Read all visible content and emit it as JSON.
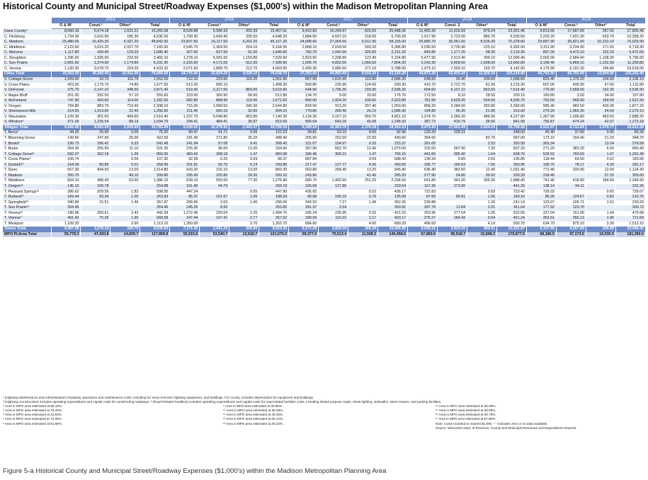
{
  "title": "Historical County and Municipal Street/Roadway Expenses ($1,000's) within the Madison Metropolitan Planning Area",
  "header": {
    "label": "County/ Municipality",
    "years": [
      "2015",
      "2016",
      "2017",
      "2018",
      "2019"
    ],
    "subcols": [
      [
        "O & M¹",
        "Const.²",
        "Other³",
        "Total"
      ],
      [
        "O & M¹",
        "Const.²",
        "Other³",
        "Total"
      ],
      [
        "O & M¹",
        "Const.²",
        "Other³",
        "Total"
      ],
      [
        "O & M¹",
        "Const. 2",
        "Other³",
        "Total"
      ],
      [
        "O & M¹",
        "Const.²",
        "Other³",
        "Total"
      ]
    ]
  },
  "rows": [
    {
      "t": "d",
      "l": "Dane County⁴",
      "v": [
        "8,060.19",
        "5,674.18",
        "1,531.21",
        "15,265.58",
        "8,528.88",
        "5,996.33",
        "932.39",
        "15,457.61",
        "9,422.83",
        "16,249.97",
        "815.55",
        "26,488.36",
        "11,455.30",
        "11,016.93",
        "879.24",
        "23,351.46",
        "9,813.66",
        "17,687.89",
        "357.92",
        "27,859.48"
      ]
    },
    {
      "t": "d",
      "l": "C. Fitchburg",
      "v": [
        "1,734.30",
        "2,616.90",
        "185.30",
        "4,536.50",
        "1,799.30",
        "2,643.40",
        "205.50",
        "4,648.20",
        "1,884.60",
        "4,597.10",
        "218.50",
        "6,700.20",
        "1,917.90",
        "2,723.00",
        "889.70",
        "5,530.60",
        "2,293.20",
        "7,431.30",
        "633.70",
        "10,358.20"
      ]
    },
    {
      "t": "d",
      "l": "C. Madison",
      "v": [
        "25,480.00",
        "16,425.30",
        "6,937.20",
        "48,842.50",
        "23,837.50",
        "16,117.50",
        "6,202.20",
        "46,157.20",
        "24,588.60",
        "27,064.50",
        "6,511.90",
        "58,165.00",
        "25,880.70",
        "35,961.60",
        "8,536.30",
        "70,378.60",
        "29,897.90",
        "35,821.90",
        "10,310.10",
        "76,029.90"
      ]
    },
    {
      "t": "d",
      "l": "C. Middleton",
      "v": [
        "2,122.60",
        "3,015.20",
        "2,027.70",
        "7,165.50",
        "2,545.70",
        "2,364.50",
        "254.10",
        "5,164.30",
        "2,868.10",
        "2,018.50",
        "500.20",
        "5,386.80",
        "3,036.50",
        "3,730.40",
        "225.10",
        "6,992.00",
        "3,311.90",
        "3,234.90",
        "171.50",
        "6,718.30"
      ]
    },
    {
      "t": "d",
      "l": "C. Monona",
      "v": [
        "1,117.80",
        "439.40",
        "129.20",
        "1,686.40",
        "927.60",
        "627.50",
        "91.50",
        "1,646.60",
        "782.70",
        "1,042.90",
        "325.60",
        "2,151.20",
        "843.80",
        "1,177.20",
        "98.30",
        "2,119.30",
        "897.30",
        "4,473.10",
        "102.20",
        "5,472.60"
      ]
    },
    {
      "t": "d",
      "l": "C. Stoughton",
      "v": [
        "1,296.60",
        "1,935.00",
        "233.50",
        "3,465.10",
        "1,278.10",
        "5,091.60",
        "1,159.80",
        "7,529.50",
        "2,823.60",
        "2,208.80",
        "122.40",
        "5,154.80",
        "9,477.90",
        "2,513.40",
        "399.10",
        "12,390.40",
        "2,003.90",
        "2,684.40",
        "1,108.30",
        "5,796.60"
      ]
    },
    {
      "t": "d",
      "l": "C. Sun Prairie",
      "v": [
        "2,681.60",
        "2,374.90",
        "1,174.80",
        "6,231.30",
        "2,316.60",
        "4,171.00",
        "912.30",
        "7,399.90",
        "1,905.70",
        "4,832.00",
        "1,066.50",
        "7,804.20",
        "2,243.30",
        "9,809.50",
        "1,608.00",
        "13,660.80",
        "3,158.40",
        "6,868.10",
        "1,232.30",
        "11,258.80"
      ]
    },
    {
      "t": "d",
      "l": "C. Verona",
      "v": [
        "1,130.30",
        "3,578.70",
        "224.20",
        "4,933.20",
        "2,071.60",
        "1,808.70",
        "212.70",
        "4,093.00",
        "2,430.30",
        "3,086.60",
        "271.10",
        "5,788.00",
        "1,473.10",
        "7,500.10",
        "169.70",
        "9,142.90",
        "4,179.90",
        "6,191.30",
        "246.80",
        "10,618.00"
      ]
    },
    {
      "t": "s",
      "l": "Cities Total",
      "v": [
        "35,563.20",
        "30,385.40",
        "10,911.90",
        "76,860.50",
        "34,776.40",
        "32,824.20",
        "9,038.10",
        "76,638.70",
        "37,283.60",
        "44,850.40",
        "9,016.20",
        "91,150.20",
        "44,873.20",
        "63,415.20",
        "11,926.20",
        "120,214.60",
        "45,742.50",
        "66,705.00",
        "13,804.90",
        "126,252.40"
      ]
    },
    {
      "t": "d",
      "l": "V. Cottage Grove",
      "v": [
        "1,429.60",
        "10.70",
        "111.70",
        "1,552.00",
        "712.10",
        "223.60",
        "116.20",
        "1,051.90",
        "857.00",
        "1,615.40",
        "113.80",
        "2,586.20",
        "638.60",
        "30.40",
        "339.60",
        "1,008.60",
        "825.40",
        "1,176.20",
        "134.50",
        "2,136.10"
      ]
    },
    {
      "t": "d",
      "l": "V. Cross Plains",
      "v": [
        "423.00",
        "1,179.70",
        "74.80",
        "1,677.50",
        "513.20",
        "895.10",
        "",
        "1,408.30",
        "569.80",
        "235.90",
        "124.60",
        "930.30",
        "410.70",
        "2,722.70",
        "81.90",
        "3,215.30",
        "607.00",
        "436.90",
        "67.00",
        "1,110.90"
      ]
    },
    {
      "t": "d",
      "l": "V. DeForest",
      "v": [
        "375.70",
        "2,147.20",
        "348.50",
        "2,871.40",
        "519.30",
        "2,217.60",
        "883.00",
        "3,619.90",
        "644.00",
        "1,796.30",
        "155.90",
        "2,596.20",
        "654.60",
        "6,107.10",
        "853.50",
        "7,615.40",
        "776.60",
        "2,568.00",
        "192.30",
        "3,536.90"
      ]
    },
    {
      "t": "d",
      "l": "V. Maple Bluff",
      "v": [
        "201.00",
        "292.50",
        "57.10",
        "550.60",
        "153.00",
        "300.90",
        "58.90",
        "512.80",
        "134.70",
        "9.00",
        "33.00",
        "176.70",
        "172.50",
        "8.10",
        "28.50",
        "209.10",
        "160.80",
        "3.00",
        "34.00",
        "197.80"
      ]
    },
    {
      "t": "d",
      "l": "V. McFarland",
      "v": [
        "747.90",
        "420.60",
        "114.00",
        "1,282.50",
        "682.80",
        "868.90",
        "119.90",
        "1,671.60",
        "890.00",
        "1,924.20",
        "109.60",
        "2,923.80",
        "781.90",
        "3,629.30",
        "524.50",
        "4,935.70",
        "763.50",
        "568.90",
        "189.50",
        "1,521.90"
      ]
    },
    {
      "t": "d",
      "l": "V. Oregon",
      "v": [
        "794.80",
        "883.70",
        "719.60",
        "2,398.10",
        "715.00",
        "1,589.50",
        "340.30",
        "2,644.80",
        "833.00",
        "913.20",
        "207.40",
        "1,953.60",
        "858.20",
        "2,284.60",
        "250.80",
        "3,393.60",
        "985.40",
        "482.50",
        "409.30",
        "1,877.20"
      ]
    },
    {
      "t": "d",
      "l": "V. Shorewood Hills",
      "v": [
        "214.60",
        "1,019.60",
        "22.40",
        "1,256.60",
        "211.40",
        "650.10",
        "32.60",
        "894.10",
        "770.80",
        "289.40",
        "26.10",
        "1,086.30",
        "194.80",
        "96.30",
        "21.90",
        "313.00",
        "279.20",
        "1,966.30",
        "24.60",
        "2,270.10"
      ]
    },
    {
      "t": "d",
      "l": "V. Waunakee",
      "v": [
        "1,109.30",
        "901.50",
        "499.60",
        "2,510.40",
        "1,237.70",
        "5,048.80",
        "853.80",
        "7,140.30",
        "1,134.30",
        "3,157.10",
        "559.70",
        "4,851.10",
        "1,374.70",
        "2,366.20",
        "486.90",
        "4,227.80",
        "1,367.90",
        "1,036.80",
        "483.50",
        "2,888.20"
      ]
    },
    {
      "t": "d",
      "l": "V. Windsor⁵",
      "v": [
        "371.00",
        "1,235.54",
        "88.19",
        "1,694.79",
        "294.41",
        "484.41",
        "36.87",
        "815.69",
        "565.64",
        "643.20",
        "40.08",
        "1,248.93",
        "387.73",
        "416.79",
        "36.56",
        "841.08",
        "756.87",
        "474.24",
        "42.07",
        "1,273.18"
      ]
    },
    {
      "t": "s",
      "l": "Villages Total",
      "v": [
        "5,666.95",
        "8,091.04",
        "2,035.89",
        "15,793.89",
        "5,038.91",
        "12,278.91",
        "2,441.57",
        "19,759.39",
        "6,399.24",
        "10,583.70",
        "1,370.18",
        "18,353.13",
        "5,473.93",
        "17,661.49",
        "2,624.16",
        "25,759.58",
        "6,522.67",
        "8,712.84",
        "1,576.77",
        "16,812.28"
      ]
    },
    {
      "t": "d",
      "l": "T. Berry⁶",
      "v": [
        "44.25",
        "25.90",
        "0.05",
        "70.20",
        "80.47",
        "41.71",
        "0.05",
        "122.23",
        "39.81",
        "53.10",
        "0.05",
        "92.96",
        "120.29",
        "228.21",
        "",
        "348.50",
        "45.40",
        "37.89",
        "0.05",
        "83.34"
      ]
    },
    {
      "t": "d",
      "l": "T. Blooming Grove",
      "v": [
        "149.60",
        "247.90",
        "25.00",
        "422.50",
        "181.40",
        "271.80",
        "35.20",
        "488.40",
        "205.60",
        "202.50",
        "22.50",
        "430.60",
        "354.60",
        "",
        "83.70",
        "687.00",
        "173.10",
        "154.40",
        "21.20",
        "348.70"
      ]
    },
    {
      "t": "d",
      "l": "T. Bristol⁷",
      "v": [
        "236.73",
        "296.42",
        "9.33",
        "542.48",
        "241.94",
        "57.08",
        "9.41",
        "308.43",
        "151.07",
        "154.97",
        "9.33",
        "315.37",
        "391.05",
        "",
        "2.53",
        "393.58",
        "363.34",
        "",
        "13.24",
        "376.58"
      ]
    },
    {
      "t": "d",
      "l": "T. Burke",
      "v": [
        "264.30",
        "255.90",
        "11.10",
        "531.30",
        "225.30",
        "96.00",
        "13.30",
        "334.60",
        "397.90",
        "662.70",
        "12.40",
        "1,073.00",
        "232.00",
        "597.90",
        "7.30",
        "837.20",
        "271.20",
        "383.20",
        "6.00",
        "660.40"
      ]
    },
    {
      "t": "d",
      "l": "T. Cottage Grove⁸",
      "v": [
        "592.07",
        "262.18",
        "1.39",
        "855.65",
        "483.42",
        "398.18",
        "1.47",
        "883.08",
        "396.46",
        "368.21",
        "1.47",
        "766.15",
        "441.66",
        "395.40",
        "1.64",
        "838.70",
        "529.52",
        "760.50",
        "1.47",
        "1,291.49"
      ]
    },
    {
      "t": "d",
      "l": "T. Cross Plains⁹",
      "v": [
        "106.74",
        "",
        "0.56",
        "107.30",
        "92.58",
        "6.20",
        "0.59",
        "99.37",
        "687.84",
        "",
        "0.59",
        "688.42",
        "136.34",
        "0.89",
        "0.59",
        "135.85",
        "118.44",
        "64.50",
        "0.62",
        "183.56"
      ]
    },
    {
      "t": "d",
      "l": "T. Dunkirk¹⁰",
      "v": [
        "164.09",
        "89.89",
        "5.01",
        "258.99",
        "201.91",
        "92.75",
        "5.14",
        "299.80",
        "217.47",
        "127.77",
        "4.36",
        "349.60",
        "185.77",
        "166.63",
        "7.55",
        "359.95",
        "199.70",
        "78.17",
        "4.30",
        "282.17"
      ]
    },
    {
      "t": "d",
      "l": "T. Dunn",
      "v": [
        "657.30",
        "844.50",
        "13.00",
        "1,514.80",
        "643.20",
        "216.10",
        "13.00",
        "860.30",
        "663.80",
        "268.40",
        "13.20",
        "945.40",
        "636.40",
        "382.60",
        "12.40",
        "1,031.40",
        "772.40",
        "339.90",
        "12.00",
        "1,124.30"
      ]
    },
    {
      "t": "d",
      "l": "T. Madison",
      "v": [
        "350.70",
        "",
        "49.10",
        "399.80",
        "295.00",
        "165.80",
        "39.30",
        "500.10",
        "243.80",
        "",
        "41.40",
        "285.20",
        "277.90",
        "24.80",
        "36.50",
        "339.20",
        "318.40",
        "",
        "37.20",
        "355.60"
      ]
    },
    {
      "t": "d",
      "l": "T. Middleton",
      "v": [
        "834.10",
        "498.40",
        "53.60",
        "1,386.10",
        "639.10",
        "559.50",
        "77.30",
        "1,275.90",
        "680.70",
        "1,402.60",
        "251.20",
        "2,334.50",
        "641.80",
        "941.30",
        "305.30",
        "1,888.40",
        "741.40",
        "418.90",
        "184.60",
        "1,344.90"
      ]
    },
    {
      "t": "d",
      "l": "T. Oregon¹¹",
      "v": [
        "145.10",
        "109.78",
        "",
        "254.88",
        "161.40",
        "94.79",
        "",
        "256.19",
        "165.69",
        "127.85",
        "",
        "293.54",
        "167.36",
        "273.90",
        "",
        "441.26",
        "138.14",
        "94.11",
        "",
        "232.26"
      ]
    },
    {
      "t": "d",
      "l": "T. Pleasant Springs¹²",
      "v": [
        "386.62",
        "209.56",
        "1.82",
        "598.00",
        "447.24",
        "",
        "0.65",
        "447.90",
        "435.65",
        "",
        "0.52",
        "436.17",
        "722.83",
        "",
        "0.59",
        "723.42",
        "726.02",
        "",
        "0.65",
        "726.67"
      ]
    },
    {
      "t": "d",
      "l": "T. Rutland¹³",
      "v": [
        "169.44",
        "93.34",
        "1.05",
        "263.83",
        "85.37",
        "101.67",
        "1.05",
        "188.09",
        "90.08",
        "105.15",
        "0.76",
        "195.99",
        "87.69",
        "90.91",
        "1.56",
        "180.16",
        "85.26",
        "124.67",
        "0.83",
        "210.76"
      ]
    },
    {
      "t": "d",
      "l": "T. Springfield¹⁴",
      "v": [
        "340.89",
        "15.51",
        "1.46",
        "357.87",
        "289.96",
        "3.63",
        "1.46",
        "295.06",
        "343.52",
        "7.27",
        "1.46",
        "352.25",
        "239.88",
        "",
        "1.26",
        "241.14",
        "123.07",
        "105.71",
        "1.51",
        "230.29"
      ]
    },
    {
      "t": "d",
      "l": "T. Sun Prairie¹⁵",
      "v": [
        "264.46",
        "",
        "",
        "264.46",
        "245.26",
        "8.56",
        "",
        "253.82",
        "391.37",
        "2.54",
        "",
        "393.91",
        "397.79",
        "11.84",
        "2.01",
        "411.64",
        "177.02",
        "123.70",
        "",
        "300.72"
      ]
    },
    {
      "t": "d",
      "l": "T. Verona¹⁶",
      "v": [
        "180.96",
        "259.61",
        "2.42",
        "442.99",
        "1,272.46",
        "220.04",
        "2.26",
        "1,494.76",
        "185.24",
        "235.95",
        "0.32",
        "421.52",
        "253.96",
        "277.54",
        "1.05",
        "532.55",
        "327.04",
        "151.00",
        "1.94",
        "479.98"
      ]
    },
    {
      "t": "d",
      "l": "T. Vienna¹⁷",
      "v": [
        "491.42",
        "75.26",
        "1.90",
        "568.58",
        "247.44",
        "107.41",
        "2.77",
        "357.62",
        "290.69",
        "110.32",
        "2.17",
        "403.17",
        "276.27",
        "184.43",
        "0.54",
        "461.24",
        "363.51",
        "356.13",
        "1.96",
        "721.60"
      ]
    },
    {
      "t": "d",
      "l": "T. Westport",
      "v": [
        "1,109.20",
        "",
        "3.90",
        "1,113.10",
        "1,350.00",
        "",
        "3.70",
        "1,353.70",
        "684.60",
        "",
        "4.60",
        "689.20",
        "496.60",
        "",
        "4.10",
        "500.70",
        "634.70",
        "875.10",
        "3.30",
        "1,513.10"
      ]
    },
    {
      "t": "s",
      "l": "Towns Total",
      "v": [
        "6,487.98",
        "3,270.15",
        "180.70",
        "9,938.83",
        "7,171.45",
        "2,441.24",
        "206.66",
        "9,819.35",
        "6,271.28",
        "3,829.34",
        "366.34",
        "10,466.95",
        "6,058.21",
        "3,825.05",
        "468.61",
        "10,351.87",
        "6,107.66",
        "4,067.89",
        "290.88",
        "10,466.42"
      ]
    },
    {
      "t": "g",
      "l": "MPO PLArea Total",
      "v": [
        "55,778.3",
        "47,420.8",
        "14,659.7",
        "117,858.8",
        "55,515.6",
        "53,540.7",
        "12,618.7",
        "121,675.0",
        "59,377.0",
        "75,513.4",
        "11,568.3",
        "146,458.6",
        "67,860.6",
        "95,918.7",
        "15,898.2",
        "179,677.5",
        "68,186.5",
        "97,173.6",
        "16,030.5",
        "181,390.6"
      ]
    }
  ],
  "notes": {
    "note1": "¹ (Highway Maintenance and Administration) Roadway operations and maintenance costs, including for snow removal, highway equipment, and buildings. For county, includes depreciation for equipment and buildings.",
    "note2": "² (Highway Construction) Includes operating expenditures and capital costs for constructing roadways.   ³ (Road Related Facilities) Includes operating expenditures and capital costs for road related facilities costs, including limited purpose roads, street lighting, sidewalks, storm sewers, and parking facilities.",
    "col1": [
      "⁴ Area in MPO area estimated at 89.19%.",
      "⁵ Area in MPO area estimated at 76.49%.",
      "⁶ Area in MPO area estimated at 24.93%.",
      "⁷ Area in MPO area estimated at 72.35%.",
      "⁸ Area in MPO area estimated at 81.88%."
    ],
    "col2": [
      "⁹ Area in MPO area estimated at 30.86%.",
      "¹⁰ Area in MPO area estimated at 65.09%.",
      "¹¹ Area in MPO area estimated at 45.36%.",
      "¹² Area in MPO area estimated at 65.12%.",
      "¹³ Area in MPO area estimated at 36.22%."
    ],
    "col3": [
      "¹⁴ Area in MPO area estimated at 50.68%.",
      "¹⁵ Area in MPO area estimated at 66.90%.",
      "¹⁶ Area in MPO area estimated at 80.75%.",
      "¹⁷ Area in MPO area estimated at 67.68%.",
      "Note:  Costs rounded to nearest $1,000. \" \" indicates zero or no data available.",
      "Source:  Wisconsin Dept. of Revenue, County and Municipal Revenues and Expenditures Reports."
    ]
  },
  "caption": "Figure 5-a Historical County and Municipal Street/Roadway Expenses ($1,000's) within the Madison Metropolitan Planning Area",
  "colors": {
    "header_blue": "#6f8bc4",
    "band": "#e5ebf6",
    "total_band": "#c9d4ea"
  }
}
